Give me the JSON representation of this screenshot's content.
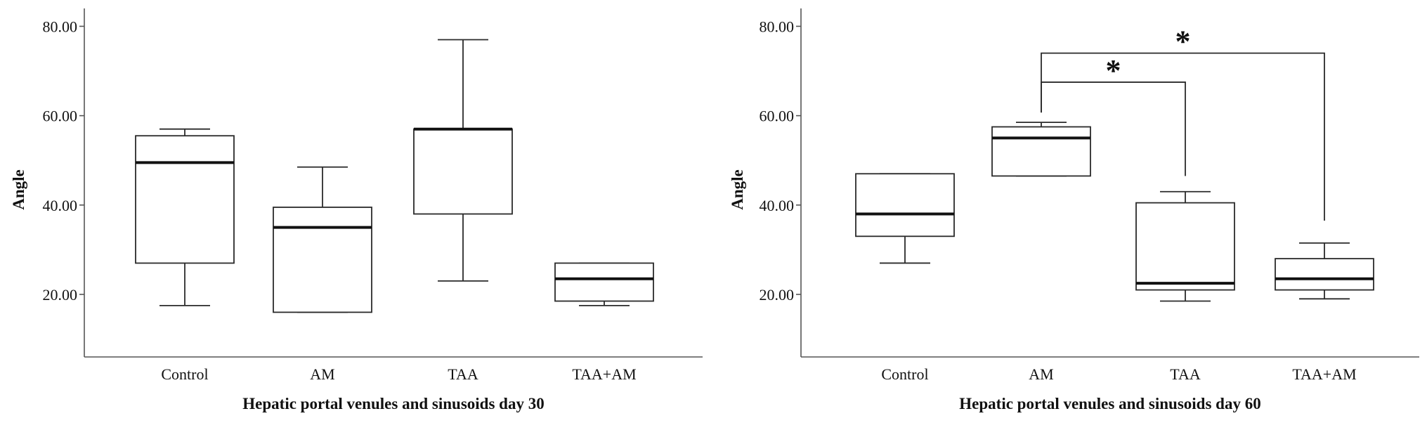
{
  "chart_data": [
    {
      "type": "box",
      "title": "",
      "xlabel": "Hepatic portal venules and sinusoids day 30",
      "ylabel": "Angle",
      "ylim": [
        6,
        84
      ],
      "yticks": [
        "20.00",
        "40.00",
        "60.00",
        "80.00"
      ],
      "ytick_values": [
        20,
        40,
        60,
        80
      ],
      "grid": false,
      "categories": [
        "Control",
        "AM",
        "TAA",
        "TAA+AM"
      ],
      "boxes": [
        {
          "category": "Control",
          "min": 17.5,
          "q1": 27,
          "median": 49.5,
          "q3": 55.5,
          "max": 57
        },
        {
          "category": "AM",
          "min": 16,
          "q1": 16,
          "median": 35,
          "q3": 39.5,
          "max": 48.5
        },
        {
          "category": "TAA",
          "min": 23,
          "q1": 38,
          "median": 57,
          "q3": 57,
          "max": 77
        },
        {
          "category": "TAA+AM",
          "min": 17.5,
          "q1": 18.5,
          "median": 23.5,
          "q3": 27,
          "max": 27
        }
      ],
      "significance": []
    },
    {
      "type": "box",
      "title": "",
      "xlabel": "Hepatic portal venules and sinusoids day 60",
      "ylabel": "Angle",
      "ylim": [
        6,
        84
      ],
      "yticks": [
        "20.00",
        "40.00",
        "60.00",
        "80.00"
      ],
      "ytick_values": [
        20,
        40,
        60,
        80
      ],
      "grid": false,
      "categories": [
        "Control",
        "AM",
        "TAA",
        "TAA+AM"
      ],
      "boxes": [
        {
          "category": "Control",
          "min": 27,
          "q1": 33,
          "median": 38,
          "q3": 47,
          "max": 47
        },
        {
          "category": "AM",
          "min": 46.5,
          "q1": 46.5,
          "median": 55,
          "q3": 57.5,
          "max": 58.5
        },
        {
          "category": "TAA",
          "min": 18.5,
          "q1": 21,
          "median": 22.5,
          "q3": 40.5,
          "max": 43
        },
        {
          "category": "TAA+AM",
          "min": 19,
          "q1": 21,
          "median": 23.5,
          "q3": 28,
          "max": 31.5
        }
      ],
      "significance": [
        {
          "from": "AM",
          "to": "TAA",
          "level": 67.5,
          "end_level": 46.5,
          "label": "*"
        },
        {
          "from": "AM",
          "to": "TAA+AM",
          "level": 74,
          "end_level": 36.5,
          "label": "*"
        }
      ]
    }
  ]
}
